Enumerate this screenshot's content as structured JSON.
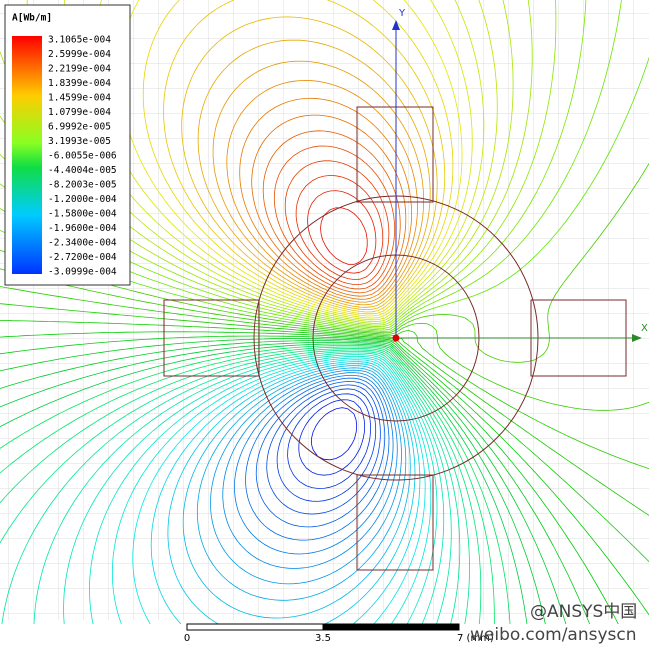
{
  "legend": {
    "title": "A[Wb/m]",
    "labels": [
      "3.1065e-004",
      "2.5999e-004",
      "2.2199e-004",
      "1.8399e-004",
      "1.4599e-004",
      "1.0799e-004",
      "6.9992e-005",
      "3.1993e-005",
      "-6.0055e-006",
      "-4.4004e-005",
      "-8.2003e-005",
      "-1.2000e-004",
      "-1.5800e-004",
      "-1.9600e-004",
      "-2.3400e-004",
      "-2.7200e-004",
      "-3.0999e-004"
    ]
  },
  "axes": {
    "y": "Y",
    "x": "X"
  },
  "scale_bar": {
    "start": "0",
    "middle": "3.5",
    "end": "7 (mm)"
  },
  "watermark": {
    "handle": "@ANSYS中国",
    "url": "weibo.com/ansyscn"
  }
}
